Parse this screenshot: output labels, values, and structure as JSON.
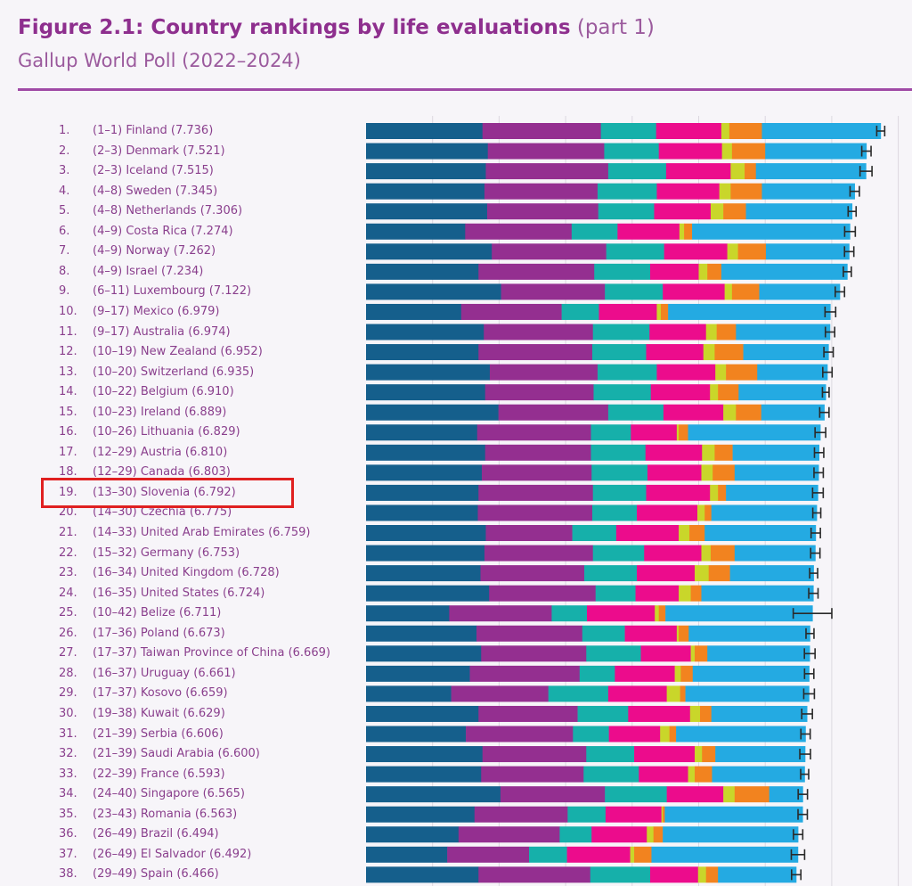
{
  "chart_data": {
    "type": "bar",
    "orientation": "horizontal",
    "stacked": true,
    "title": "Figure 2.1: Country rankings by life evaluations",
    "title_suffix": "(part 1)",
    "subtitle": "Gallup World Poll (2022–2024)",
    "xlim": [
      0,
      8
    ],
    "grid": true,
    "highlighted_rank": 19,
    "segment_colors": [
      "#155f8c",
      "#942f90",
      "#16b0aa",
      "#ec0c8c",
      "#c9d62a",
      "#f2831f",
      "#24aae2"
    ],
    "rows": [
      {
        "rank": "1.",
        "label": "(1–1) Finland (7.736)",
        "score": 7.736,
        "seg": [
          1.75,
          1.78,
          0.83,
          0.98,
          0.12,
          0.49
        ],
        "ci": 0.06
      },
      {
        "rank": "2.",
        "label": "(2–3) Denmark (7.521)",
        "score": 7.521,
        "seg": [
          1.83,
          1.75,
          0.82,
          0.95,
          0.15,
          0.5
        ],
        "ci": 0.07
      },
      {
        "rank": "3.",
        "label": "(2–3) Iceland (7.515)",
        "score": 7.515,
        "seg": [
          1.8,
          1.84,
          0.87,
          0.97,
          0.21,
          0.17
        ],
        "ci": 0.09
      },
      {
        "rank": "4.",
        "label": "(4–8) Sweden (7.345)",
        "score": 7.345,
        "seg": [
          1.78,
          1.7,
          0.89,
          0.94,
          0.17,
          0.47
        ],
        "ci": 0.07
      },
      {
        "rank": "5.",
        "label": "(4–8) Netherlands (7.306)",
        "score": 7.306,
        "seg": [
          1.82,
          1.67,
          0.84,
          0.85,
          0.19,
          0.34
        ],
        "ci": 0.06
      },
      {
        "rank": "6.",
        "label": "(4–9) Costa Rica (7.274)",
        "score": 7.274,
        "seg": [
          1.49,
          1.6,
          0.69,
          0.93,
          0.07,
          0.12
        ],
        "ci": 0.08
      },
      {
        "rank": "7.",
        "label": "(4–9) Norway (7.262)",
        "score": 7.262,
        "seg": [
          1.89,
          1.72,
          0.87,
          0.95,
          0.16,
          0.42
        ],
        "ci": 0.07
      },
      {
        "rank": "8.",
        "label": "(4–9) Israel (7.234)",
        "score": 7.234,
        "seg": [
          1.69,
          1.74,
          0.84,
          0.73,
          0.13,
          0.21
        ],
        "ci": 0.06
      },
      {
        "rank": "9.",
        "label": "(6–11) Luxembourg (7.122)",
        "score": 7.122,
        "seg": [
          2.03,
          1.56,
          0.87,
          0.93,
          0.11,
          0.41
        ],
        "ci": 0.07
      },
      {
        "rank": "10.",
        "label": "(9–17) Mexico (6.979)",
        "score": 6.979,
        "seg": [
          1.43,
          1.51,
          0.56,
          0.87,
          0.06,
          0.11
        ],
        "ci": 0.08
      },
      {
        "rank": "11.",
        "label": "(9–17) Australia (6.974)",
        "score": 6.974,
        "seg": [
          1.77,
          1.64,
          0.85,
          0.85,
          0.16,
          0.29
        ],
        "ci": 0.07
      },
      {
        "rank": "12.",
        "label": "(10–19) New Zealand (6.952)",
        "score": 6.952,
        "seg": [
          1.69,
          1.71,
          0.81,
          0.86,
          0.17,
          0.43
        ],
        "ci": 0.07
      },
      {
        "rank": "13.",
        "label": "(10–20) Switzerland (6.935)",
        "score": 6.935,
        "seg": [
          1.86,
          1.62,
          0.89,
          0.88,
          0.16,
          0.47
        ],
        "ci": 0.07
      },
      {
        "rank": "14.",
        "label": "(10–22) Belgium (6.910)",
        "score": 6.91,
        "seg": [
          1.79,
          1.63,
          0.86,
          0.89,
          0.12,
          0.31
        ],
        "ci": 0.05
      },
      {
        "rank": "15.",
        "label": "(10–23) Ireland (6.889)",
        "score": 6.889,
        "seg": [
          1.99,
          1.65,
          0.83,
          0.9,
          0.19,
          0.38
        ],
        "ci": 0.07
      },
      {
        "rank": "16.",
        "label": "(10–26) Lithuania (6.829)",
        "score": 6.829,
        "seg": [
          1.67,
          1.71,
          0.6,
          0.69,
          0.03,
          0.14
        ],
        "ci": 0.08
      },
      {
        "rank": "17.",
        "label": "(12–29) Austria (6.810)",
        "score": 6.81,
        "seg": [
          1.79,
          1.59,
          0.82,
          0.85,
          0.19,
          0.27
        ],
        "ci": 0.07
      },
      {
        "rank": "18.",
        "label": "(12–29) Canada (6.803)",
        "score": 6.803,
        "seg": [
          1.74,
          1.65,
          0.84,
          0.81,
          0.17,
          0.33
        ],
        "ci": 0.07
      },
      {
        "rank": "19.",
        "label": "(13–30) Slovenia (6.792)",
        "score": 6.792,
        "seg": [
          1.69,
          1.72,
          0.8,
          0.96,
          0.12,
          0.12
        ],
        "ci": 0.08
      },
      {
        "rank": "20.",
        "label": "(14–30) Czechia (6.775)",
        "score": 6.775,
        "seg": [
          1.68,
          1.72,
          0.67,
          0.91,
          0.11,
          0.1
        ],
        "ci": 0.06
      },
      {
        "rank": "21.",
        "label": "(14–33) United Arab Emirates (6.759)",
        "score": 6.759,
        "seg": [
          1.8,
          1.3,
          0.66,
          0.94,
          0.16,
          0.23
        ],
        "ci": 0.07
      },
      {
        "rank": "22.",
        "label": "(15–32) Germany (6.753)",
        "score": 6.753,
        "seg": [
          1.78,
          1.63,
          0.77,
          0.86,
          0.14,
          0.36
        ],
        "ci": 0.07
      },
      {
        "rank": "23.",
        "label": "(16–34) United Kingdom (6.728)",
        "score": 6.728,
        "seg": [
          1.72,
          1.56,
          0.79,
          0.87,
          0.21,
          0.32
        ],
        "ci": 0.06
      },
      {
        "rank": "24.",
        "label": "(16–35) United States (6.724)",
        "score": 6.724,
        "seg": [
          1.85,
          1.6,
          0.6,
          0.65,
          0.18,
          0.16
        ],
        "ci": 0.07
      },
      {
        "rank": "25.",
        "label": "(10–42) Belize (6.711)",
        "score": 6.711,
        "seg": [
          1.25,
          1.54,
          0.53,
          1.02,
          0.06,
          0.1
        ],
        "ci": 0.29
      },
      {
        "rank": "26.",
        "label": "(17–36) Poland (6.673)",
        "score": 6.673,
        "seg": [
          1.66,
          1.59,
          0.64,
          0.78,
          0.03,
          0.15
        ],
        "ci": 0.06
      },
      {
        "rank": "27.",
        "label": "(17–37) Taiwan Province of China (6.669)",
        "score": 6.669,
        "seg": [
          1.73,
          1.58,
          0.82,
          0.75,
          0.06,
          0.19
        ],
        "ci": 0.08
      },
      {
        "rank": "28.",
        "label": "(16–37) Uruguay (6.661)",
        "score": 6.661,
        "seg": [
          1.56,
          1.65,
          0.53,
          0.9,
          0.09,
          0.18
        ],
        "ci": 0.07
      },
      {
        "rank": "29.",
        "label": "(17–37) Kosovo (6.659)",
        "score": 6.659,
        "seg": [
          1.28,
          1.46,
          0.9,
          0.88,
          0.2,
          0.08
        ],
        "ci": 0.08
      },
      {
        "rank": "30.",
        "label": "(19–38) Kuwait (6.629)",
        "score": 6.629,
        "seg": [
          1.69,
          1.49,
          0.76,
          0.93,
          0.15,
          0.17
        ],
        "ci": 0.08
      },
      {
        "rank": "31.",
        "label": "(21–39) Serbia (6.606)",
        "score": 6.606,
        "seg": [
          1.5,
          1.61,
          0.54,
          0.77,
          0.14,
          0.1
        ],
        "ci": 0.07
      },
      {
        "rank": "32.",
        "label": "(21–39) Saudi Arabia (6.600)",
        "score": 6.6,
        "seg": [
          1.75,
          1.56,
          0.72,
          0.91,
          0.11,
          0.2
        ],
        "ci": 0.08
      },
      {
        "rank": "33.",
        "label": "(22–39) France (6.593)",
        "score": 6.593,
        "seg": [
          1.73,
          1.54,
          0.83,
          0.74,
          0.1,
          0.26
        ],
        "ci": 0.06
      },
      {
        "rank": "34.",
        "label": "(24–40) Singapore (6.565)",
        "score": 6.565,
        "seg": [
          2.02,
          1.57,
          0.93,
          0.85,
          0.17,
          0.52
        ],
        "ci": 0.07
      },
      {
        "rank": "35.",
        "label": "(23–43) Romania (6.563)",
        "score": 6.563,
        "seg": [
          1.63,
          1.4,
          0.57,
          0.84,
          0.02,
          0.03
        ],
        "ci": 0.07
      },
      {
        "rank": "36.",
        "label": "(26–49) Brazil (6.494)",
        "score": 6.494,
        "seg": [
          1.39,
          1.52,
          0.48,
          0.83,
          0.1,
          0.14
        ],
        "ci": 0.07
      },
      {
        "rank": "37.",
        "label": "(26–49) El Salvador (6.492)",
        "score": 6.492,
        "seg": [
          1.22,
          1.23,
          0.57,
          0.95,
          0.06,
          0.26
        ],
        "ci": 0.1
      },
      {
        "rank": "38.",
        "label": "(29–49) Spain (6.466)",
        "score": 6.466,
        "seg": [
          1.69,
          1.68,
          0.9,
          0.72,
          0.12,
          0.18
        ],
        "ci": 0.07
      }
    ]
  }
}
